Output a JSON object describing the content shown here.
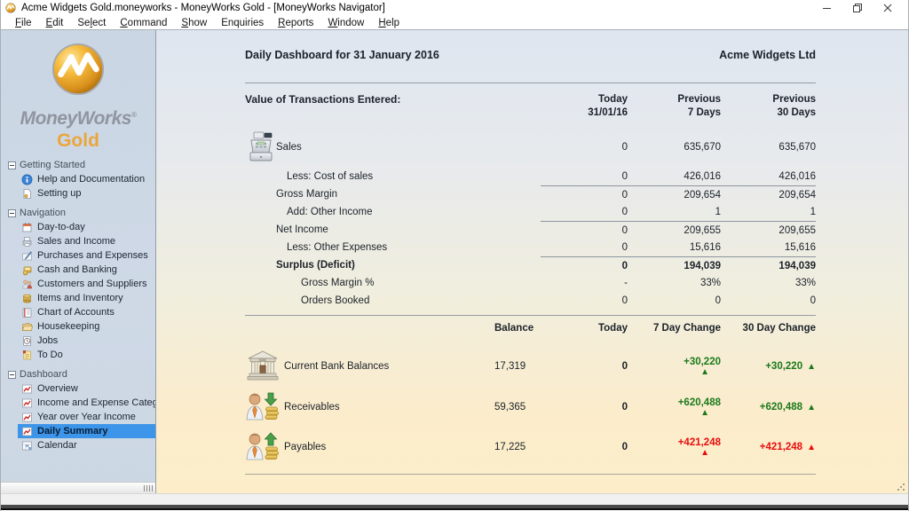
{
  "window": {
    "title": "Acme Widgets Gold.moneyworks - MoneyWorks Gold - [MoneyWorks Navigator]"
  },
  "menubar": {
    "items": [
      {
        "label": "File",
        "accel": 0
      },
      {
        "label": "Edit",
        "accel": 0
      },
      {
        "label": "Select",
        "accel": 2
      },
      {
        "label": "Command",
        "accel": 0
      },
      {
        "label": "Show",
        "accel": 0
      },
      {
        "label": "Enquiries",
        "accel": null
      },
      {
        "label": "Reports",
        "accel": 0
      },
      {
        "label": "Window",
        "accel": 0
      },
      {
        "label": "Help",
        "accel": 0
      }
    ]
  },
  "sidebar": {
    "brand": "MoneyWorks",
    "brand_mark": "®",
    "edition": "Gold",
    "sections": [
      {
        "label": "Getting Started",
        "items": [
          {
            "label": "Help and Documentation",
            "icon": "info-icon"
          },
          {
            "label": "Setting up",
            "icon": "page-icon"
          }
        ]
      },
      {
        "label": "Navigation",
        "items": [
          {
            "label": "Day-to-day",
            "icon": "calendar-icon"
          },
          {
            "label": "Sales and Income",
            "icon": "invoice-icon"
          },
          {
            "label": "Purchases and Expenses",
            "icon": "pen-icon"
          },
          {
            "label": "Cash and Banking",
            "icon": "cash-icon"
          },
          {
            "label": "Customers and Suppliers",
            "icon": "people-icon"
          },
          {
            "label": "Items and Inventory",
            "icon": "inventory-icon"
          },
          {
            "label": "Chart of Accounts",
            "icon": "ledger-icon"
          },
          {
            "label": "Housekeeping",
            "icon": "folder-icon"
          },
          {
            "label": "Jobs",
            "icon": "jobs-icon"
          },
          {
            "label": "To Do",
            "icon": "todo-icon"
          }
        ]
      },
      {
        "label": "Dashboard",
        "items": [
          {
            "label": "Overview",
            "icon": "chart-icon"
          },
          {
            "label": "Income and Expense Categories",
            "icon": "chart-icon"
          },
          {
            "label": "Year over Year Income",
            "icon": "chart-icon"
          },
          {
            "label": "Daily Summary",
            "icon": "chart-icon",
            "selected": true
          },
          {
            "label": "Calendar",
            "icon": "calendar-grid-icon"
          }
        ]
      }
    ]
  },
  "main": {
    "title": "Daily Dashboard for 31 January 2016",
    "company": "Acme Widgets Ltd",
    "transactions": {
      "heading": "Value of Transactions Entered:",
      "col_headers": [
        {
          "line1": "Today",
          "line2": "31/01/16"
        },
        {
          "line1": "Previous",
          "line2": "7 Days"
        },
        {
          "line1": "Previous",
          "line2": "30 Days"
        }
      ],
      "rows": [
        {
          "label": "Sales",
          "icon": "cash-register-icon",
          "indent": 0,
          "today": "0",
          "prev7": "635,670",
          "prev30": "635,670",
          "tall": true
        },
        {
          "label": "Less: Cost of sales",
          "indent": 1,
          "today": "0",
          "prev7": "426,016",
          "prev30": "426,016"
        },
        {
          "label": "Gross Margin",
          "indent": 0,
          "line_above": true,
          "today": "0",
          "prev7": "209,654",
          "prev30": "209,654"
        },
        {
          "label": "Add: Other Income",
          "indent": 1,
          "today": "0",
          "prev7": "1",
          "prev30": "1"
        },
        {
          "label": "Net Income",
          "indent": 0,
          "line_above": true,
          "today": "0",
          "prev7": "209,655",
          "prev30": "209,655"
        },
        {
          "label": "Less: Other Expenses",
          "indent": 1,
          "today": "0",
          "prev7": "15,616",
          "prev30": "15,616"
        },
        {
          "label": "Surplus (Deficit)",
          "indent": 0,
          "bold": true,
          "line_above": true,
          "today": "0",
          "prev7": "194,039",
          "prev30": "194,039"
        },
        {
          "label": "Gross Margin %",
          "indent": 2,
          "today": "-",
          "prev7": "33%",
          "prev30": "33%"
        },
        {
          "label": "Orders Booked",
          "indent": 2,
          "today": "0",
          "prev7": "0",
          "prev30": "0"
        }
      ]
    },
    "balances": {
      "col_headers": {
        "balance": "Balance",
        "today": "Today",
        "change7": "7 Day Change",
        "change30": "30 Day Change"
      },
      "rows": [
        {
          "label": "Current Bank Balances",
          "icon": "bank-icon",
          "balance": "17,319",
          "today": "0",
          "change7": "+30,220",
          "change30": "+30,220",
          "color": "green"
        },
        {
          "label": "Receivables",
          "icon": "receivables-icon",
          "balance": "59,365",
          "today": "0",
          "change7": "+620,488",
          "change30": "+620,488",
          "color": "green"
        },
        {
          "label": "Payables",
          "icon": "payables-icon",
          "balance": "17,225",
          "today": "0",
          "change7": "+421,248",
          "change30": "+421,248",
          "color": "red"
        }
      ]
    }
  },
  "symbols": {
    "up_triangle": "▲"
  },
  "colors": {
    "positive": "#1b7a1b",
    "negative": "#e80c0c",
    "selection": "#3d95e9",
    "gold": "#eaa63c",
    "panel_top": "#dfe6f0",
    "panel_bottom": "#fdeec9"
  }
}
